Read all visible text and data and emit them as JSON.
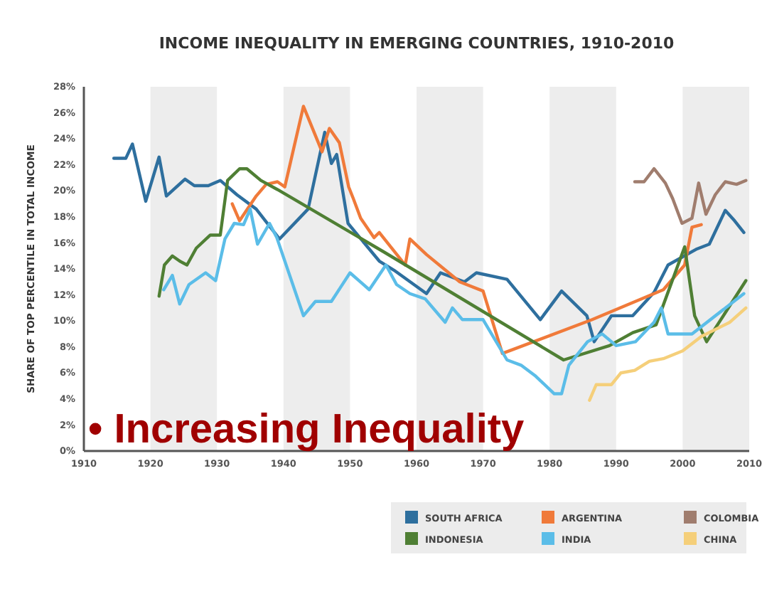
{
  "chart_data": {
    "type": "line",
    "title": "INCOME INEQUALITY IN EMERGING COUNTRIES, 1910-2010",
    "ylabel": "SHARE OF TOP PERCENTILE IN TOTAL INCOME",
    "xlim": [
      1910,
      2010
    ],
    "xticks": [
      1910,
      1920,
      1930,
      1940,
      1950,
      1960,
      1970,
      1980,
      1990,
      2000,
      2010
    ],
    "ylim": [
      0,
      28
    ],
    "yticks": [
      {
        "value": 0,
        "label": "0%"
      },
      {
        "value": 2,
        "label": "2%"
      },
      {
        "value": 4,
        "label": "4%"
      },
      {
        "value": 6,
        "label": "6%"
      },
      {
        "value": 8,
        "label": "8%"
      },
      {
        "value": 10,
        "label": "10%"
      },
      {
        "value": 12,
        "label": "12%"
      },
      {
        "value": 14,
        "label": "14%"
      },
      {
        "value": 16,
        "label": "16%"
      },
      {
        "value": 18,
        "label": "18%"
      },
      {
        "value": 20,
        "label": "20%"
      },
      {
        "value": 22,
        "label": "22%"
      },
      {
        "value": 24,
        "label": "24%"
      },
      {
        "value": 26,
        "label": "26%"
      },
      {
        "value": 28,
        "label": "28%"
      }
    ],
    "grid": false,
    "legend": "bottom right",
    "line_style": "solid",
    "marker": "none",
    "bands": [
      {
        "axis": "x",
        "from": 1920,
        "to": 1930,
        "color": "#ededed"
      },
      {
        "axis": "x",
        "from": 1940,
        "to": 1950,
        "color": "#ededed"
      },
      {
        "axis": "x",
        "from": 1960,
        "to": 1970,
        "color": "#ededed"
      },
      {
        "axis": "x",
        "from": 1980,
        "to": 1990,
        "color": "#ededed"
      },
      {
        "axis": "x",
        "from": 2000,
        "to": 2010,
        "color": "#ededed"
      }
    ],
    "annotations": [
      "• Increasing Inequality"
    ],
    "series": [
      {
        "name": "SOUTH AFRICA",
        "color": "#2e6f9e",
        "x": [
          1914.5,
          1916.3,
          1917.3,
          1919.3,
          1921.3,
          1922.4,
          1925.2,
          1926.6,
          1928.7,
          1930.5,
          1933,
          1935.9,
          1939.4,
          1943.7,
          1946.2,
          1947.2,
          1948,
          1949.7,
          1954.4,
          1956.6,
          1961.5,
          1963.6,
          1967.2,
          1969,
          1973.6,
          1978.6,
          1981.8,
          1985.6,
          1986.7,
          1989.3,
          1992.5,
          1995.7,
          1997.8,
          2002,
          2004,
          2006.4,
          2007.8,
          2009.2
        ],
        "values": [
          22.5,
          22.5,
          23.6,
          19.2,
          22.6,
          19.6,
          20.9,
          20.4,
          20.4,
          20.8,
          19.7,
          18.6,
          16.3,
          18.6,
          24.5,
          22.1,
          22.8,
          17.5,
          14.6,
          13.9,
          12.1,
          13.7,
          13,
          13.7,
          13.2,
          10.1,
          12.3,
          10.4,
          8.4,
          10.4,
          10.4,
          12.2,
          14.3,
          15.5,
          15.9,
          18.5,
          17.7,
          16.8
        ]
      },
      {
        "name": "ARGENTINA",
        "color": "#f07a3a",
        "x": [
          1932.3,
          1933.4,
          1935.9,
          1937.4,
          1939.1,
          1940.2,
          1941.6,
          1943,
          1945.8,
          1946.9,
          1948.4,
          1949.8,
          1950.5,
          1951.6,
          1953.6,
          1954.4,
          1958.3,
          1959,
          1961.5,
          1966.5,
          1970,
          1972.9,
          1986.4,
          1997.1,
          2000.3,
          2001.4,
          2002.8
        ],
        "values": [
          19,
          17.7,
          19.6,
          20.5,
          20.7,
          20.3,
          23.4,
          26.5,
          23,
          24.8,
          23.7,
          20.3,
          19.4,
          17.9,
          16.4,
          16.8,
          14.3,
          16.3,
          15.1,
          13,
          12.3,
          7.5,
          10.1,
          12.4,
          14.3,
          17.2,
          17.4
        ]
      },
      {
        "name": "COLOMBIA",
        "color": "#a07d6e",
        "x": [
          1992.8,
          1994.2,
          1995.7,
          1997.4,
          1998.5,
          1999.9,
          2001.4,
          2002.4,
          2003.5,
          2004.9,
          2006.4,
          2008.1,
          2009.5
        ],
        "values": [
          20.7,
          20.7,
          21.7,
          20.6,
          19.4,
          17.5,
          17.9,
          20.6,
          18.2,
          19.7,
          20.7,
          20.5,
          20.8
        ]
      },
      {
        "name": "INDONESIA",
        "color": "#4f7f34",
        "x": [
          1921.3,
          1922.1,
          1923.3,
          1924.4,
          1925.5,
          1926.9,
          1929,
          1930.5,
          1931.6,
          1933.4,
          1934.5,
          1936.6,
          1939.1,
          1955.1,
          1982.1,
          1989,
          1992.5,
          1996,
          2000.3,
          2001.8,
          2003.6,
          2009.5
        ],
        "values": [
          11.9,
          14.3,
          15,
          14.6,
          14.3,
          15.6,
          16.6,
          16.6,
          20.8,
          21.7,
          21.7,
          20.8,
          20.1,
          15.3,
          7,
          8.1,
          9.1,
          9.7,
          15.7,
          10.4,
          8.4,
          13.1
        ]
      },
      {
        "name": "INDIA",
        "color": "#5bbde8",
        "x": [
          1922,
          1923.3,
          1924.4,
          1925.8,
          1928.3,
          1929.8,
          1931.2,
          1932.6,
          1934,
          1935,
          1936.1,
          1937.9,
          1939,
          1943,
          1944.8,
          1947.2,
          1948.6,
          1950,
          1952.9,
          1955.4,
          1957,
          1959,
          1961.3,
          1964.3,
          1965.4,
          1966.9,
          1970,
          1973.6,
          1975.7,
          1977.8,
          1980.7,
          1981.8,
          1982.9,
          1985.7,
          1987.9,
          1990,
          1992.9,
          1995.7,
          1996.8,
          1997.8,
          2001.4,
          2009.2
        ],
        "values": [
          12.4,
          13.5,
          11.3,
          12.8,
          13.7,
          13.1,
          16.3,
          17.5,
          17.4,
          18.6,
          15.9,
          17.5,
          16.4,
          10.4,
          11.5,
          11.5,
          12.6,
          13.7,
          12.4,
          14.3,
          12.8,
          12.1,
          11.7,
          9.9,
          11,
          10.1,
          10.1,
          7,
          6.6,
          5.8,
          4.4,
          4.4,
          6.6,
          8.4,
          9,
          8.1,
          8.4,
          9.9,
          11,
          9,
          9,
          12.1
        ]
      },
      {
        "name": "CHINA",
        "color": "#f5cf7a",
        "x": [
          1986,
          1987,
          1989.3,
          1990.7,
          1992.8,
          1995,
          1997.1,
          2000,
          2002.8,
          2007.1,
          2009.5
        ],
        "values": [
          3.9,
          5.1,
          5.1,
          6,
          6.2,
          6.9,
          7.1,
          7.7,
          8.8,
          9.9,
          11
        ]
      }
    ]
  }
}
